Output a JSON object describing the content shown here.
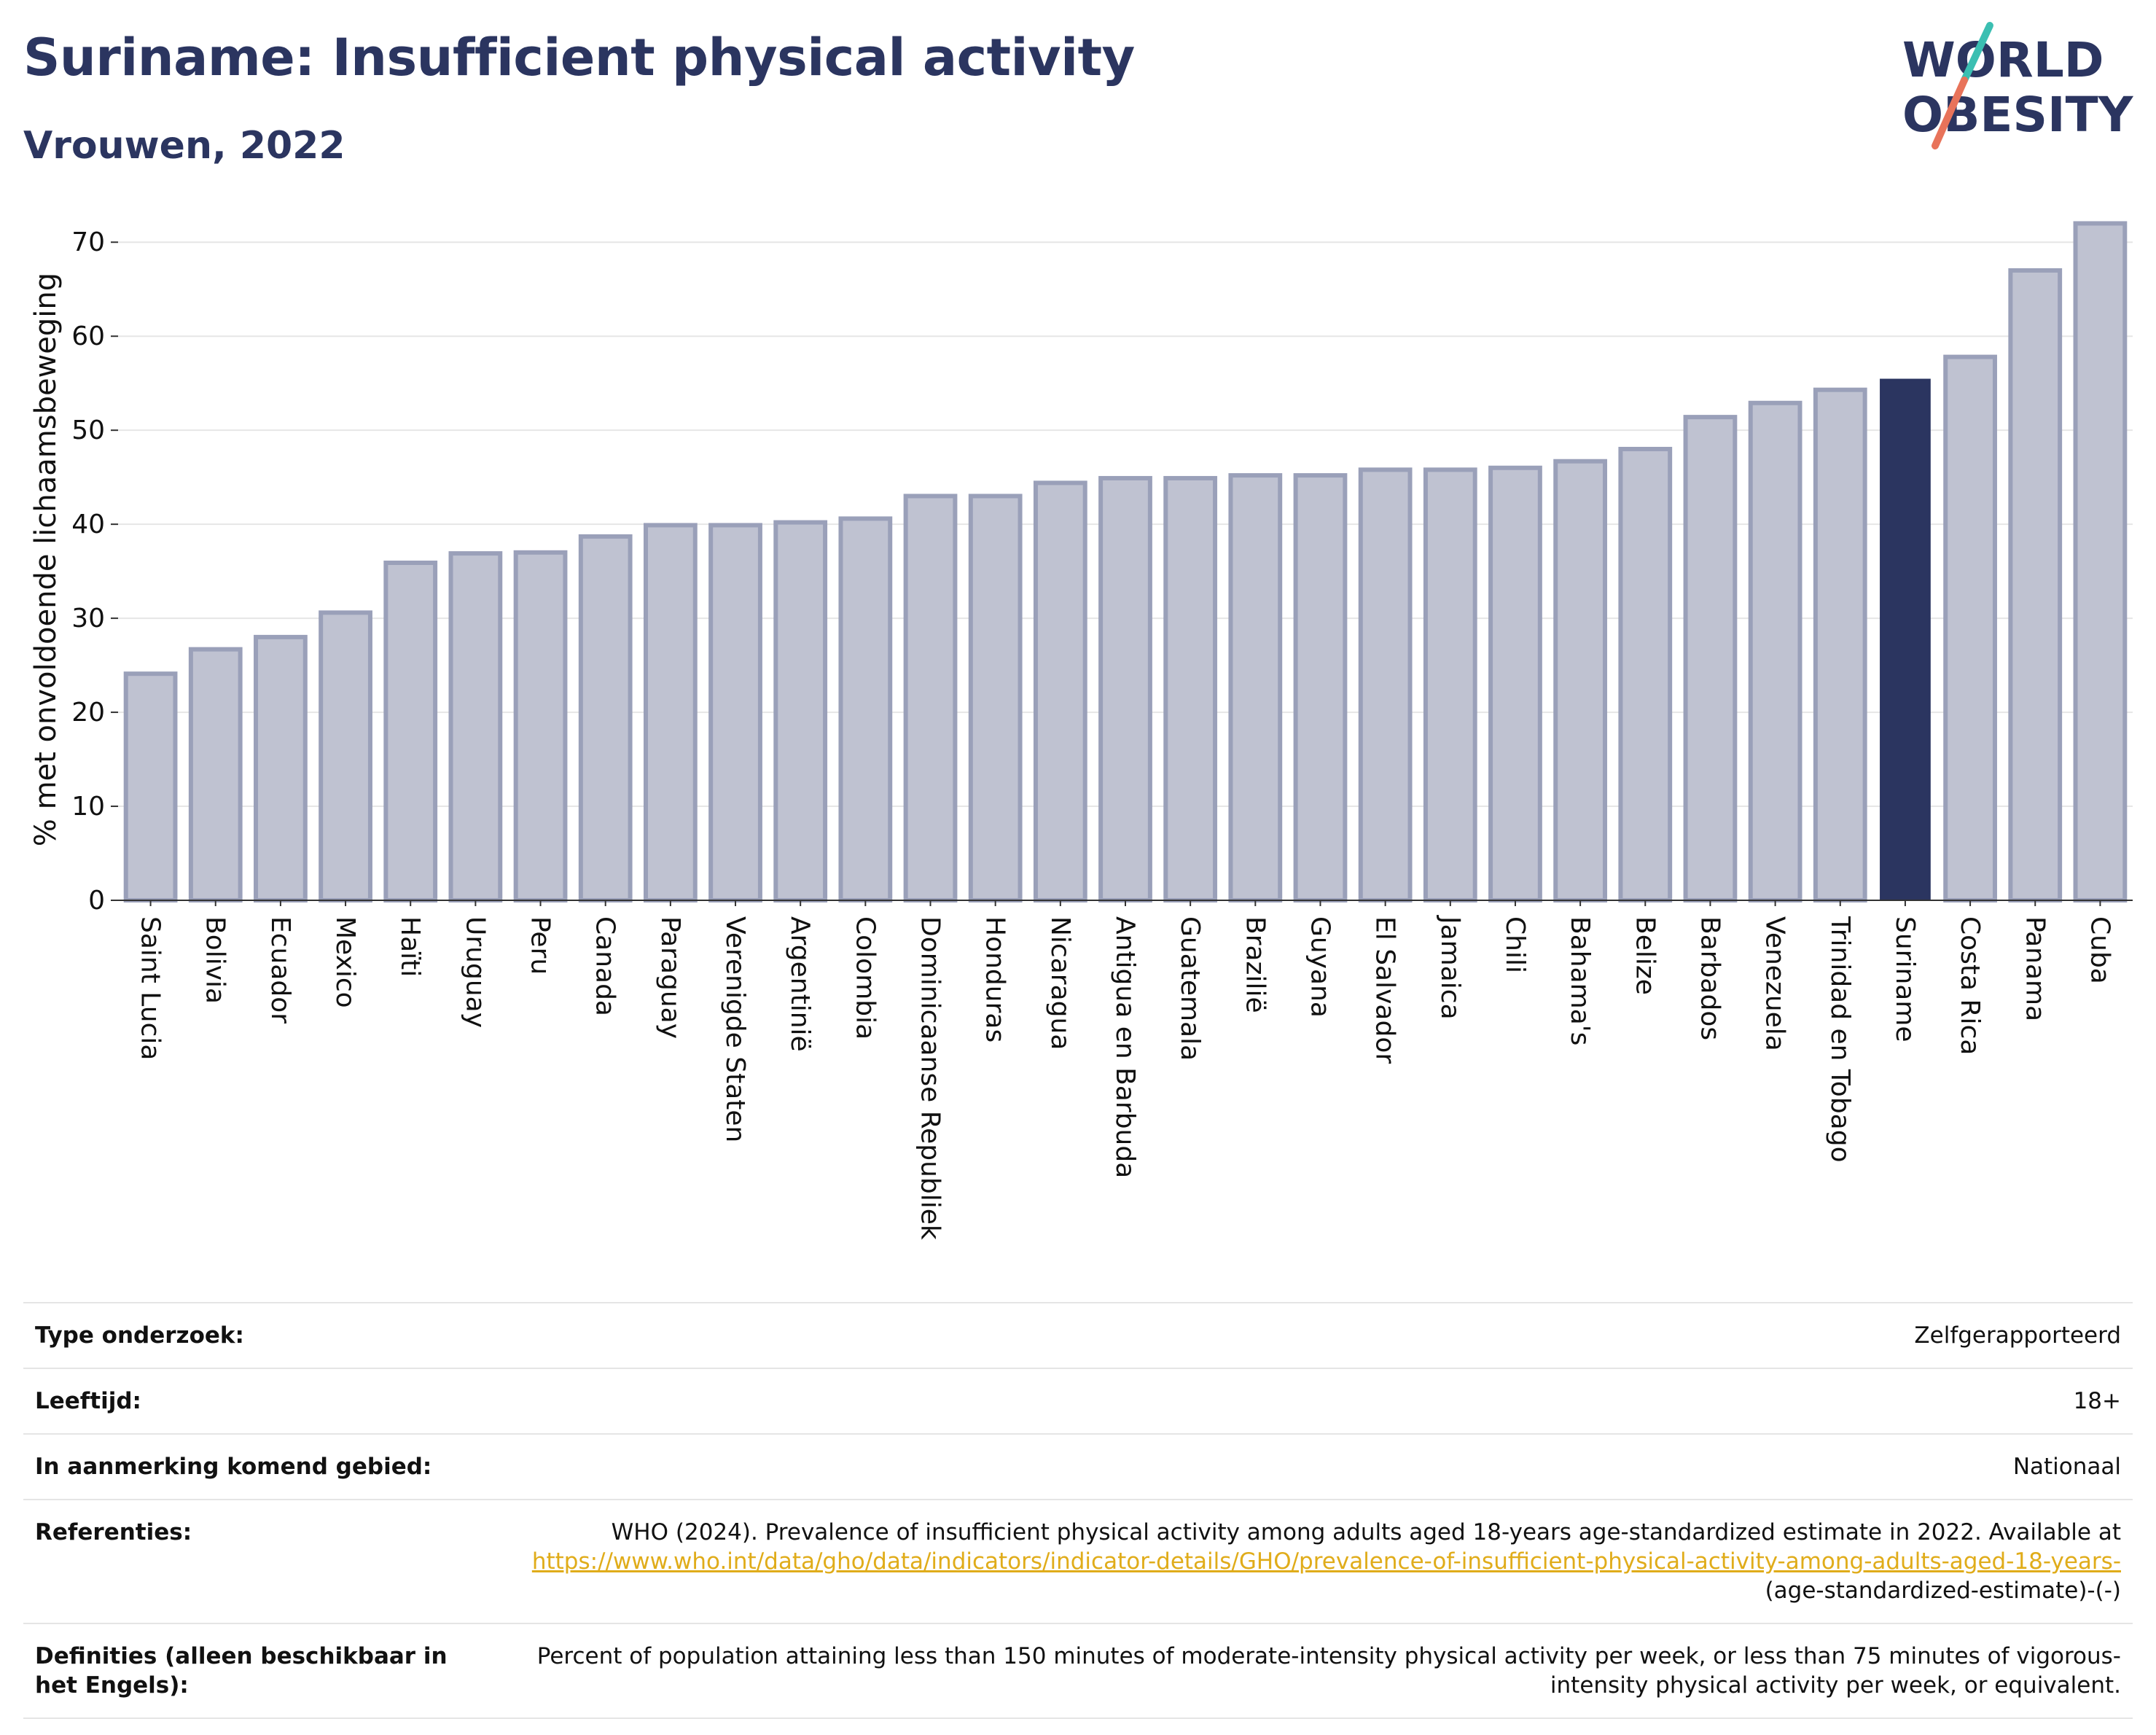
{
  "header": {
    "title": "Suriname: Insufficient physical activity",
    "subtitle": "Vrouwen, 2022",
    "logo_line1": "WORLD",
    "logo_line2": "OBESITY"
  },
  "colors": {
    "bar_default": "#bfc2d1",
    "bar_default_stroke": "#9aa0b9",
    "bar_highlight": "#2b3560",
    "title": "#2b3560",
    "grid": "#e6e6e6",
    "link": "#e0ac1a",
    "logo_slash_teal": "#3bbfb2",
    "logo_slash_coral": "#e8735a"
  },
  "chart_data": {
    "type": "bar",
    "ylabel": "% met onvoldoende lichaamsbeweging",
    "xlabel": "",
    "ylim": [
      0,
      72.5
    ],
    "yticks": [
      0,
      10,
      20,
      30,
      40,
      50,
      60,
      70
    ],
    "grid": true,
    "highlight": "Suriname",
    "categories": [
      "Saint Lucia",
      "Bolivia",
      "Ecuador",
      "Mexico",
      "Haïti",
      "Uruguay",
      "Peru",
      "Canada",
      "Paraguay",
      "Verenigde Staten",
      "Argentinië",
      "Colombia",
      "Dominicaanse Republiek",
      "Honduras",
      "Nicaragua",
      "Antigua en Barbuda",
      "Guatemala",
      "Brazilië",
      "Guyana",
      "El Salvador",
      "Jamaica",
      "Chili",
      "Bahama's",
      "Belize",
      "Barbados",
      "Venezuela",
      "Trinidad en Tobago",
      "Suriname",
      "Costa Rica",
      "Panama",
      "Cuba"
    ],
    "values": [
      24.1,
      26.7,
      28.0,
      30.6,
      35.9,
      36.9,
      37.0,
      38.7,
      39.9,
      39.9,
      40.2,
      40.6,
      43.0,
      43.0,
      44.4,
      44.9,
      44.9,
      45.2,
      45.2,
      45.8,
      45.8,
      46.0,
      46.7,
      48.0,
      51.4,
      52.9,
      54.3,
      55.4,
      57.8,
      67.0,
      72.0
    ]
  },
  "info": [
    {
      "key": "Type onderzoek:",
      "value": "Zelfgerapporteerd"
    },
    {
      "key": "Leeftijd:",
      "value": "18+"
    },
    {
      "key": "In aanmerking komend gebied:",
      "value": "Nationaal"
    }
  ],
  "references": {
    "key": "Referenties:",
    "text": "WHO (2024). Prevalence of insufficient physical activity among adults aged 18-years age-standardized estimate in 2022. Available at",
    "link": "https://www.who.int/data/gho/data/indicators/indicator-details/GHO/prevalence-of-insufficient-physical-activity-among-adults-aged-18-years-",
    "suffix": "(age-standardized-estimate)-(-)"
  },
  "definitions": {
    "key": "Definities (alleen beschikbaar in het Engels):",
    "value": "Percent of population attaining less than 150 minutes of moderate-intensity physical activity per week, or less than 75 minutes of vigorous-intensity physical activity per week, or equivalent."
  }
}
